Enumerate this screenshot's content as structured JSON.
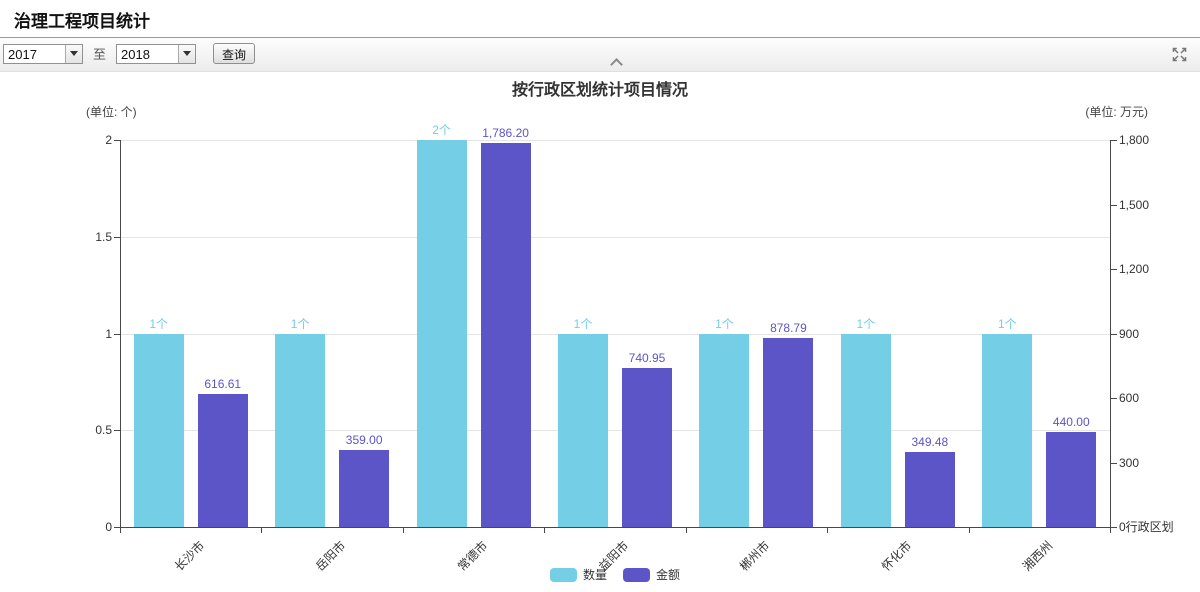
{
  "header": {
    "title": "治理工程项目统计"
  },
  "toolbar": {
    "year_from": "2017",
    "range_separator": "至",
    "year_to": "2018",
    "query_button": "查询"
  },
  "chart_data": {
    "type": "bar",
    "title": "按行政区划统计项目情况",
    "left_axis_unit": "(单位: 个)",
    "right_axis_unit": "(单位: 万元)",
    "x_axis_name": "行政区划",
    "categories": [
      "长沙市",
      "岳阳市",
      "常德市",
      "益阳市",
      "郴州市",
      "怀化市",
      "湘西州"
    ],
    "series": [
      {
        "name": "数量",
        "axis": "left",
        "color": "#73cee6",
        "values": [
          1,
          1,
          2,
          1,
          1,
          1,
          1
        ],
        "labels": [
          "1个",
          "1个",
          "2个",
          "1个",
          "1个",
          "1个",
          "1个"
        ]
      },
      {
        "name": "金额",
        "axis": "right",
        "color": "#5b55c8",
        "values": [
          616.61,
          359.0,
          1786.2,
          740.95,
          878.79,
          349.48,
          440.0
        ],
        "labels": [
          "616.61",
          "359.00",
          "1,786.20",
          "740.95",
          "878.79",
          "349.48",
          "440.00"
        ]
      }
    ],
    "left_axis": {
      "min": 0,
      "max": 2,
      "ticks": [
        "2",
        "1.5",
        "1",
        "0.5",
        "0"
      ]
    },
    "right_axis": {
      "min": 0,
      "max": 1800,
      "ticks": [
        "1,800",
        "1,500",
        "1,200",
        "900",
        "600",
        "300",
        "0"
      ]
    },
    "legend": [
      "数量",
      "金额"
    ],
    "legend_position": "bottom",
    "grid": true
  }
}
